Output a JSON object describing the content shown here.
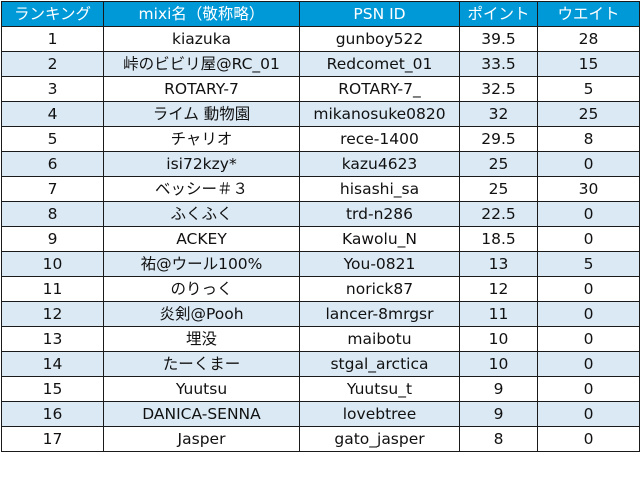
{
  "headers": [
    "ランキング",
    "mixi名（敬称略）",
    "PSN ID",
    "ポイント",
    "ウエイト"
  ],
  "rows": [
    [
      "1",
      "kiazuka",
      "gunboy522",
      "39.5",
      "28"
    ],
    [
      "2",
      "峠のビビリ屋@RC_01",
      "Redcomet_01",
      "33.5",
      "15"
    ],
    [
      "3",
      "ROTARY-7",
      "ROTARY-7_",
      "32.5",
      "5"
    ],
    [
      "4",
      "ライム 動物園",
      "mikanosuke0820",
      "32",
      "25"
    ],
    [
      "5",
      "チャリオ",
      "rece-1400",
      "29.5",
      "8"
    ],
    [
      "6",
      "isi72kzy*",
      "kazu4623",
      "25",
      "0"
    ],
    [
      "7",
      "ベッシー＃３",
      "hisashi_sa",
      "25",
      "30"
    ],
    [
      "8",
      "ふくふく",
      "trd-n286",
      "22.5",
      "0"
    ],
    [
      "9",
      "ACKEY",
      "Kawolu_N",
      "18.5",
      "0"
    ],
    [
      "10",
      "祐@ウール100%",
      "You-0821",
      "13",
      "5"
    ],
    [
      "11",
      "のりっく",
      "norick87",
      "12",
      "0"
    ],
    [
      "12",
      "炎剣@Pooh",
      "lancer-8mrgsr",
      "11",
      "0"
    ],
    [
      "13",
      "埋没",
      "maibotu",
      "10",
      "0"
    ],
    [
      "14",
      "たーくまー",
      "stgal_arctica",
      "10",
      "0"
    ],
    [
      "15",
      "Yuutsu",
      "Yuutsu_t",
      "9",
      "0"
    ],
    [
      "16",
      "DANICA-SENNA",
      "lovebtree",
      "9",
      "0"
    ],
    [
      "17",
      "Jasper",
      "gato_jasper",
      "8",
      "0"
    ]
  ]
}
